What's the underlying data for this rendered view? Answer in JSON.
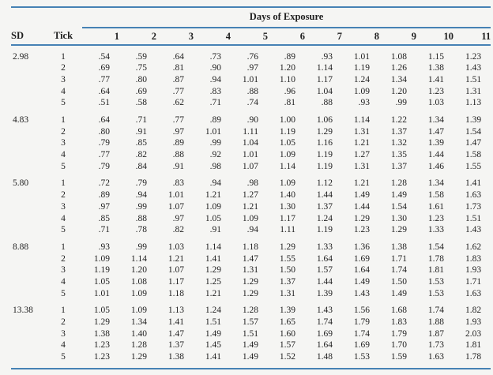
{
  "page": {
    "background": "#f5f5f3",
    "text_color": "#1f1f1f"
  },
  "table": {
    "title": "Days of Exposure",
    "sd_header": "SD",
    "tick_header": "Tick",
    "day_headers": [
      "1",
      "2",
      "3",
      "4",
      "5",
      "6",
      "7",
      "8",
      "9",
      "10",
      "11"
    ],
    "rule_color": "#4682b4",
    "groups": [
      {
        "sd": "2.98",
        "rows": [
          {
            "tick": "1",
            "values": [
              ".54",
              ".59",
              ".64",
              ".73",
              ".76",
              ".89",
              ".93",
              "1.01",
              "1.08",
              "1.15",
              "1.23"
            ]
          },
          {
            "tick": "2",
            "values": [
              ".69",
              ".75",
              ".81",
              ".90",
              ".97",
              "1.20",
              "1.14",
              "1.19",
              "1.26",
              "1.38",
              "1.43"
            ]
          },
          {
            "tick": "3",
            "values": [
              ".77",
              ".80",
              ".87",
              ".94",
              "1.01",
              "1.10",
              "1.17",
              "1.24",
              "1.34",
              "1.41",
              "1.51"
            ]
          },
          {
            "tick": "4",
            "values": [
              ".64",
              ".69",
              ".77",
              ".83",
              ".88",
              ".96",
              "1.04",
              "1.09",
              "1.20",
              "1.23",
              "1.31"
            ]
          },
          {
            "tick": "5",
            "values": [
              ".51",
              ".58",
              ".62",
              ".71",
              ".74",
              ".81",
              ".88",
              ".93",
              ".99",
              "1.03",
              "1.13"
            ]
          }
        ]
      },
      {
        "sd": "4.83",
        "rows": [
          {
            "tick": "1",
            "values": [
              ".64",
              ".71",
              ".77",
              ".89",
              ".90",
              "1.00",
              "1.06",
              "1.14",
              "1.22",
              "1.34",
              "1.39"
            ]
          },
          {
            "tick": "2",
            "values": [
              ".80",
              ".91",
              ".97",
              "1.01",
              "1.11",
              "1.19",
              "1.29",
              "1.31",
              "1.37",
              "1.47",
              "1.54"
            ]
          },
          {
            "tick": "3",
            "values": [
              ".79",
              ".85",
              ".89",
              ".99",
              "1.04",
              "1.05",
              "1.16",
              "1.21",
              "1.32",
              "1.39",
              "1.47"
            ]
          },
          {
            "tick": "4",
            "values": [
              ".77",
              ".82",
              ".88",
              ".92",
              "1.01",
              "1.09",
              "1.19",
              "1.27",
              "1.35",
              "1.44",
              "1.58"
            ]
          },
          {
            "tick": "5",
            "values": [
              ".79",
              ".84",
              ".91",
              ".98",
              "1.07",
              "1.14",
              "1.19",
              "1.31",
              "1.37",
              "1.46",
              "1.55"
            ]
          }
        ]
      },
      {
        "sd": "5.80",
        "rows": [
          {
            "tick": "1",
            "values": [
              ".72",
              ".79",
              ".83",
              ".94",
              ".98",
              "1.09",
              "1.12",
              "1.21",
              "1.28",
              "1.34",
              "1.41"
            ]
          },
          {
            "tick": "2",
            "values": [
              ".89",
              ".94",
              "1.01",
              "1.21",
              "1.27",
              "1.40",
              "1.44",
              "1.49",
              "1.49",
              "1.58",
              "1.63"
            ]
          },
          {
            "tick": "3",
            "values": [
              ".97",
              ".99",
              "1.07",
              "1.09",
              "1.21",
              "1.30",
              "1.37",
              "1.44",
              "1.54",
              "1.61",
              "1.73"
            ]
          },
          {
            "tick": "4",
            "values": [
              ".85",
              ".88",
              ".97",
              "1.05",
              "1.09",
              "1.17",
              "1.24",
              "1.29",
              "1.30",
              "1.23",
              "1.51"
            ]
          },
          {
            "tick": "5",
            "values": [
              ".71",
              ".78",
              ".82",
              ".91",
              ".94",
              "1.11",
              "1.19",
              "1.23",
              "1.29",
              "1.33",
              "1.43"
            ]
          }
        ]
      },
      {
        "sd": "8.88",
        "rows": [
          {
            "tick": "1",
            "values": [
              ".93",
              ".99",
              "1.03",
              "1.14",
              "1.18",
              "1.29",
              "1.33",
              "1.36",
              "1.38",
              "1.54",
              "1.62"
            ]
          },
          {
            "tick": "2",
            "values": [
              "1.09",
              "1.14",
              "1.21",
              "1.41",
              "1.47",
              "1.55",
              "1.64",
              "1.69",
              "1.71",
              "1.78",
              "1.83"
            ]
          },
          {
            "tick": "3",
            "values": [
              "1.19",
              "1.20",
              "1.07",
              "1.29",
              "1.31",
              "1.50",
              "1.57",
              "1.64",
              "1.74",
              "1.81",
              "1.93"
            ]
          },
          {
            "tick": "4",
            "values": [
              "1.05",
              "1.08",
              "1.17",
              "1.25",
              "1.29",
              "1.37",
              "1.44",
              "1.49",
              "1.50",
              "1.53",
              "1.71"
            ]
          },
          {
            "tick": "5",
            "values": [
              "1.01",
              "1.09",
              "1.18",
              "1.21",
              "1.29",
              "1.31",
              "1.39",
              "1.43",
              "1.49",
              "1.53",
              "1.63"
            ]
          }
        ]
      },
      {
        "sd": "13.38",
        "rows": [
          {
            "tick": "1",
            "values": [
              "1.05",
              "1.09",
              "1.13",
              "1.24",
              "1.28",
              "1.39",
              "1.43",
              "1.56",
              "1.68",
              "1.74",
              "1.82"
            ]
          },
          {
            "tick": "2",
            "values": [
              "1.29",
              "1.34",
              "1.41",
              "1.51",
              "1.57",
              "1.65",
              "1.74",
              "1.79",
              "1.83",
              "1.88",
              "1.93"
            ]
          },
          {
            "tick": "3",
            "values": [
              "1.38",
              "1.40",
              "1.47",
              "1.49",
              "1.51",
              "1.60",
              "1.69",
              "1.74",
              "1.79",
              "1.87",
              "2.03"
            ]
          },
          {
            "tick": "4",
            "values": [
              "1.23",
              "1.28",
              "1.37",
              "1.45",
              "1.49",
              "1.57",
              "1.64",
              "1.69",
              "1.70",
              "1.73",
              "1.81"
            ]
          },
          {
            "tick": "5",
            "values": [
              "1.23",
              "1.29",
              "1.38",
              "1.41",
              "1.49",
              "1.52",
              "1.48",
              "1.53",
              "1.59",
              "1.63",
              "1.78"
            ]
          }
        ]
      }
    ]
  }
}
